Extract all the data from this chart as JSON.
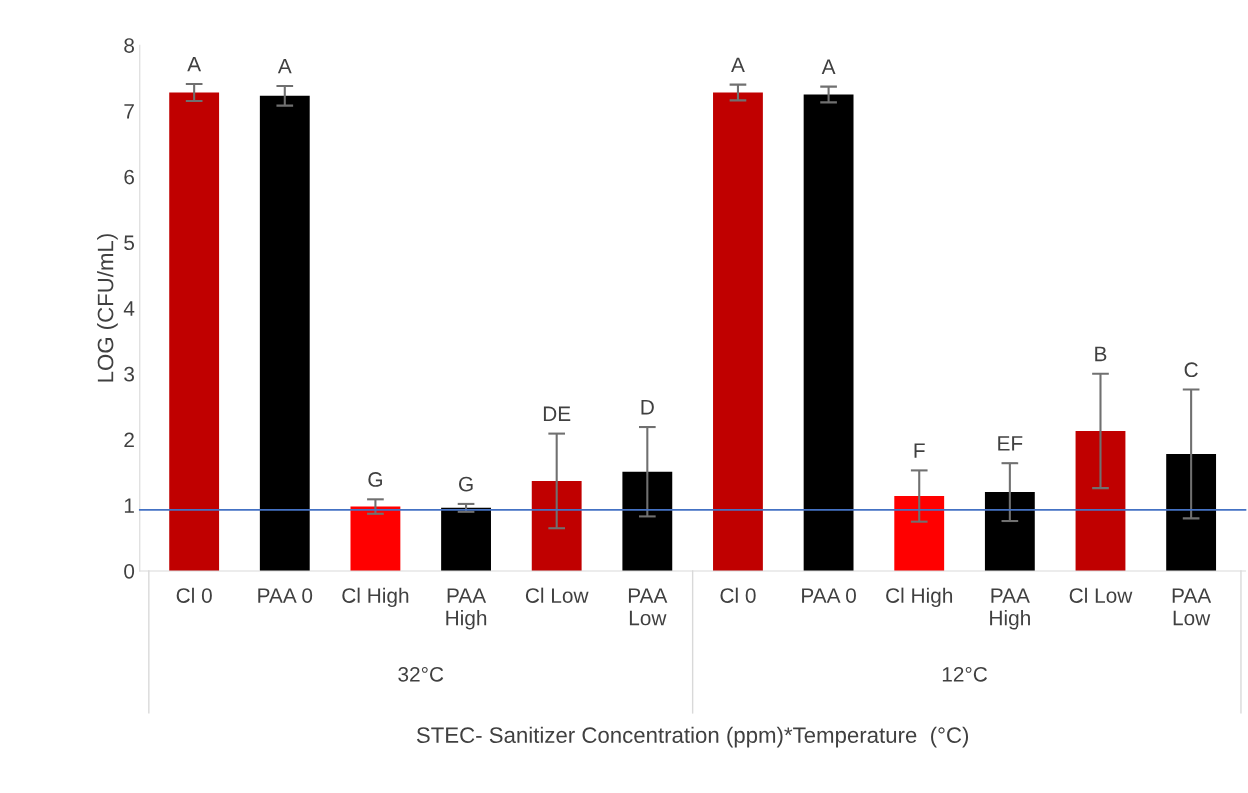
{
  "chart_data": {
    "type": "bar",
    "ylabel": "LOG (CFU/mL)",
    "xlabel": "STEC- Sanitizer Concentration (ppm)*Temperature  (°C)",
    "categories": [
      "Cl 0",
      "PAA 0",
      "Cl High",
      "PAA\nHigh",
      "Cl Low",
      "PAA\nLow",
      "Cl 0",
      "PAA 0",
      "Cl High",
      "PAA\nHigh",
      "Cl Low",
      "PAA\nLow"
    ],
    "values": [
      7.28,
      7.23,
      0.98,
      0.96,
      1.37,
      1.51,
      7.28,
      7.25,
      1.14,
      1.2,
      2.13,
      1.78
    ],
    "errors": [
      0.13,
      0.15,
      0.11,
      0.06,
      0.72,
      0.68,
      0.12,
      0.12,
      0.39,
      0.44,
      0.87,
      0.98
    ],
    "colors": [
      "#c00000",
      "#000000",
      "#ff0000",
      "#000000",
      "#c00000",
      "#000000",
      "#c00000",
      "#000000",
      "#ff0000",
      "#000000",
      "#c00000",
      "#000000"
    ],
    "annotations": [
      "A",
      "A",
      "G",
      "G",
      "DE",
      "D",
      "A",
      "A",
      "F",
      "EF",
      "B",
      "C",
      "32°C",
      "12°C"
    ],
    "ref_lines": [
      {
        "axis": "y",
        "value": 0.93,
        "color": "#4472c4"
      }
    ],
    "ylim": [
      0,
      8
    ],
    "yticks": [
      0,
      1,
      2,
      3,
      4,
      5,
      6,
      7,
      8
    ],
    "grid": false,
    "legend": false
  }
}
